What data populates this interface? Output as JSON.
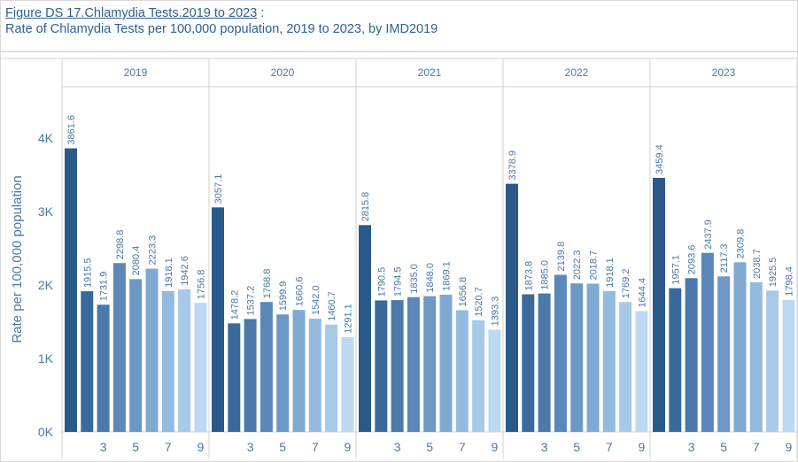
{
  "figure": {
    "title_underlined": "Figure DS 17.Chlamydia Tests.2019 to 2023",
    "title_suffix": " :",
    "subtitle": "Rate of Chlamydia Tests per 100,000 population, 2019 to 2023, by IMD2019"
  },
  "colors": [
    "#2b5a8a",
    "#3a6a9c",
    "#4a79aa",
    "#5b88b8",
    "#6d98c5",
    "#80a9d2",
    "#94badf",
    "#a8cae9",
    "#bcd9f1"
  ],
  "chart_data": {
    "type": "bar",
    "ylabel": "Rate per 100,000 population",
    "ylim": [
      0,
      4700
    ],
    "yticks": [
      0,
      1000,
      2000,
      3000,
      4000
    ],
    "ytick_labels": [
      "0K",
      "1K",
      "2K",
      "3K",
      "4K"
    ],
    "xtick_labels": [
      "3",
      "5",
      "7",
      "9"
    ],
    "grid": false,
    "panels": [
      {
        "label": "2019",
        "values": [
          3861.6,
          1915.5,
          1731.9,
          2298.8,
          2080.4,
          2223.3,
          1918.1,
          1942.6,
          1756.8
        ],
        "labels": [
          "3861.6",
          "1915.5",
          "1731.9",
          "2298.8",
          "2080.4",
          "2223.3",
          "1918.1",
          "1942.6",
          "1756.8"
        ]
      },
      {
        "label": "2020",
        "values": [
          3057.1,
          1478.2,
          1537.2,
          1768.8,
          1599.9,
          1660.6,
          1542.0,
          1460.7,
          1291.1
        ],
        "labels": [
          "3057.1",
          "1478.2",
          "1537.2",
          "1768.8",
          "1599.9",
          "1660.6",
          "1542.0",
          "1460.7",
          "1291.1"
        ]
      },
      {
        "label": "2021",
        "values": [
          2815.8,
          1790.5,
          1794.5,
          1835.0,
          1848.0,
          1869.1,
          1656.8,
          1520.7,
          1393.3
        ],
        "labels": [
          "2815.8",
          "1790.5",
          "1794.5",
          "1835.0",
          "1848.0",
          "1869.1",
          "1656.8",
          "1520.7",
          "1393.3"
        ]
      },
      {
        "label": "2022",
        "values": [
          3378.9,
          1873.8,
          1885.0,
          2139.8,
          2022.3,
          2018.7,
          1918.1,
          1769.2,
          1644.4
        ],
        "labels": [
          "3378.9",
          "1873.8",
          "1885.0",
          "2139.8",
          "2022.3",
          "2018.7",
          "1918.1",
          "1769.2",
          "1644.4"
        ]
      },
      {
        "label": "2023",
        "values": [
          3459.4,
          1957.1,
          2093.6,
          2437.9,
          2117.3,
          2309.8,
          2038.7,
          1925.5,
          1798.4
        ],
        "labels": [
          "3459.4",
          "1957.1",
          "2093.6",
          "2437.9",
          "2117.3",
          "2309.8",
          "2038.7",
          "1925.5",
          "1798.4"
        ]
      }
    ]
  }
}
